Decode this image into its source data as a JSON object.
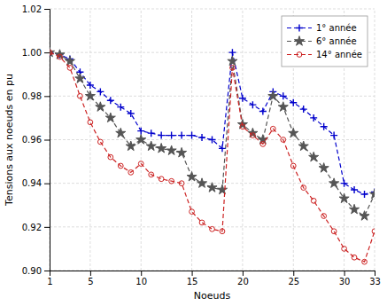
{
  "chart_data": {
    "type": "line",
    "xlabel": "Noeuds",
    "ylabel": "Tensions aux noeuds en pu",
    "x": [
      1,
      2,
      3,
      4,
      5,
      6,
      7,
      8,
      9,
      10,
      11,
      12,
      13,
      14,
      15,
      16,
      17,
      18,
      19,
      20,
      21,
      22,
      23,
      24,
      25,
      26,
      27,
      28,
      29,
      30,
      31,
      32,
      33
    ],
    "series": [
      {
        "name": "1° année",
        "color": "#0000CC",
        "marker": "plus",
        "line_style": "dashed",
        "values": [
          1.0,
          0.999,
          0.997,
          0.991,
          0.985,
          0.982,
          0.978,
          0.975,
          0.972,
          0.964,
          0.963,
          0.962,
          0.962,
          0.962,
          0.962,
          0.961,
          0.96,
          0.956,
          1.0,
          0.979,
          0.976,
          0.973,
          0.982,
          0.98,
          0.977,
          0.974,
          0.97,
          0.966,
          0.962,
          0.94,
          0.937,
          0.935,
          0.936
        ]
      },
      {
        "name": "6° année",
        "color": "#555555",
        "marker": "star",
        "line_style": "dashed",
        "values": [
          1.0,
          0.999,
          0.996,
          0.988,
          0.98,
          0.975,
          0.97,
          0.963,
          0.957,
          0.96,
          0.957,
          0.956,
          0.955,
          0.954,
          0.943,
          0.94,
          0.938,
          0.937,
          0.996,
          0.967,
          0.963,
          0.96,
          0.98,
          0.975,
          0.963,
          0.957,
          0.952,
          0.947,
          0.94,
          0.933,
          0.928,
          0.925,
          0.935
        ]
      },
      {
        "name": "14° année",
        "color": "#CC2222",
        "marker": "circle",
        "line_style": "dashed",
        "values": [
          1.0,
          0.998,
          0.993,
          0.98,
          0.968,
          0.959,
          0.952,
          0.948,
          0.945,
          0.949,
          0.944,
          0.942,
          0.941,
          0.94,
          0.927,
          0.922,
          0.919,
          0.918,
          0.993,
          0.966,
          0.962,
          0.958,
          0.965,
          0.96,
          0.948,
          0.938,
          0.932,
          0.925,
          0.918,
          0.91,
          0.906,
          0.904,
          0.918
        ]
      }
    ],
    "xlim": [
      1,
      33
    ],
    "ylim": [
      0.9,
      1.02
    ],
    "xticks": [
      1,
      5,
      10,
      15,
      20,
      25,
      30,
      33
    ],
    "yticks": [
      {
        "value": 0.9,
        "label": "0.90"
      },
      0.92,
      0.94,
      0.96,
      0.98,
      {
        "value": 1.0,
        "label": "1.00"
      },
      1.02
    ],
    "grid": true,
    "legend": "upper right"
  }
}
